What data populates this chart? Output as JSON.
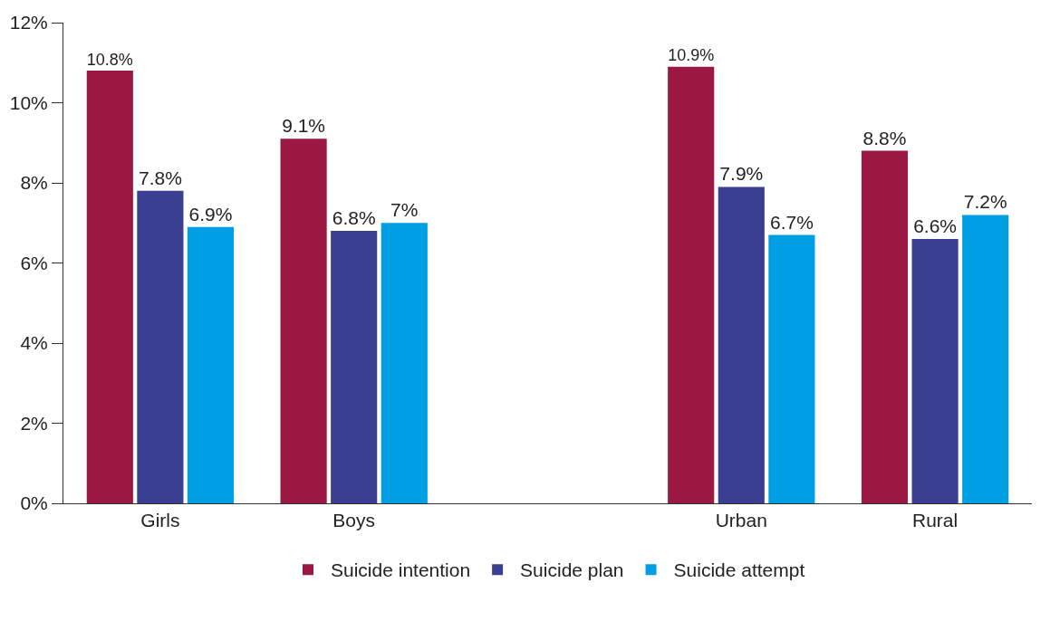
{
  "chart_data": {
    "type": "bar",
    "categories": [
      "Girls",
      "Boys",
      null,
      "Urban",
      "Rural"
    ],
    "series": [
      {
        "name": "Suicide intention",
        "color": "#9b1842",
        "values": [
          10.8,
          9.1,
          null,
          10.9,
          8.8
        ],
        "value_labels": [
          "10.8%",
          "9.1%",
          null,
          "10.9%",
          "8.8%"
        ]
      },
      {
        "name": "Suicide plan",
        "color": "#3a3f91",
        "values": [
          7.8,
          6.8,
          null,
          7.9,
          6.6
        ],
        "value_labels": [
          "7.8%",
          "6.8%",
          null,
          "7.9%",
          "6.6%"
        ]
      },
      {
        "name": "Suicide attempt",
        "color": "#009fe3",
        "values": [
          6.9,
          7,
          null,
          6.7,
          7.2
        ],
        "value_labels": [
          "6.9%",
          "7%",
          null,
          "6.7%",
          "7.2%"
        ]
      }
    ],
    "ylim": [
      0,
      12
    ],
    "yticks": [
      {
        "value": 0,
        "label": "0%"
      },
      {
        "value": 2,
        "label": "2%"
      },
      {
        "value": 4,
        "label": "4%"
      },
      {
        "value": 6,
        "label": "6%"
      },
      {
        "value": 8,
        "label": "8%"
      },
      {
        "value": 10,
        "label": "10%"
      },
      {
        "value": 12,
        "label": "12%"
      }
    ],
    "grid": false,
    "legend": "bottom"
  }
}
